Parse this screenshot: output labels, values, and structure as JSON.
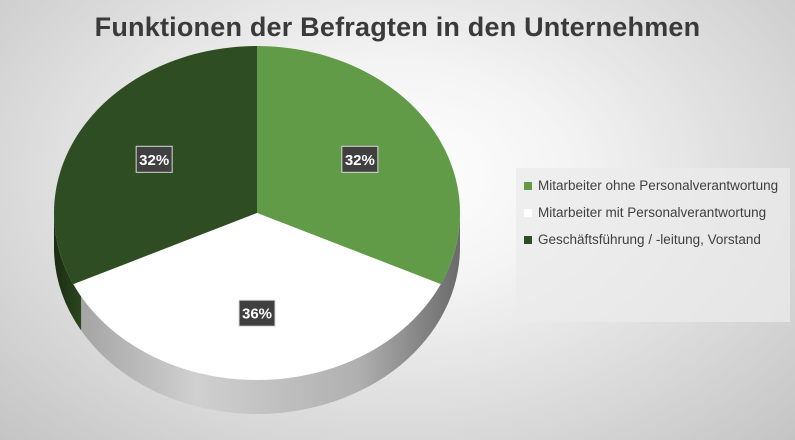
{
  "chart_data": {
    "type": "pie",
    "title": "Funktionen der Befragten in den Unternehmen",
    "slices": [
      {
        "label": "Mitarbeiter ohne Personalverantwortung",
        "value": 32,
        "display": "32%",
        "color": "#629b48"
      },
      {
        "label": "Mitarbeiter mit Personalverantwortung",
        "value": 36,
        "display": "36%",
        "color": "#ffffff"
      },
      {
        "label": "Geschäftsführung / -leitung, Vorstand",
        "value": 32,
        "display": "32%",
        "color": "#2f4d22"
      }
    ],
    "legend_position": "right"
  }
}
